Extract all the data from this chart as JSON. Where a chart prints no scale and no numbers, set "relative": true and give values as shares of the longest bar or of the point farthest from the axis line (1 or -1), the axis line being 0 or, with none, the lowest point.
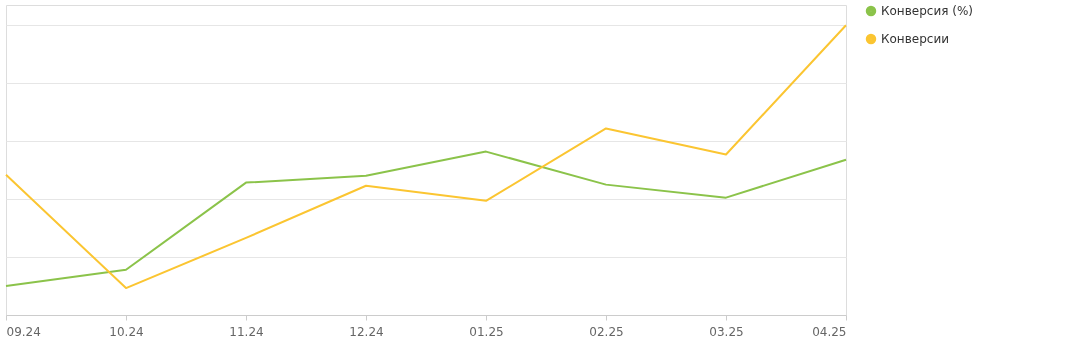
{
  "chart_data": {
    "type": "line",
    "relative": true,
    "categories": [
      "09.24",
      "10.24",
      "11.24",
      "12.24",
      "01.25",
      "02.25",
      "03.25",
      "04.25"
    ],
    "series": [
      {
        "name": "Конверсия (%)",
        "color": "#8bc34a",
        "values": [
          0.1,
          0.156,
          0.457,
          0.481,
          0.564,
          0.45,
          0.405,
          0.536
        ]
      },
      {
        "name": "Конверсии",
        "color": "#fbc531",
        "values": [
          0.484,
          0.093,
          0.266,
          0.446,
          0.394,
          0.644,
          0.554,
          1
        ]
      }
    ],
    "grid": "y",
    "legend": "top right",
    "marker": "none",
    "line_style": "solid"
  }
}
